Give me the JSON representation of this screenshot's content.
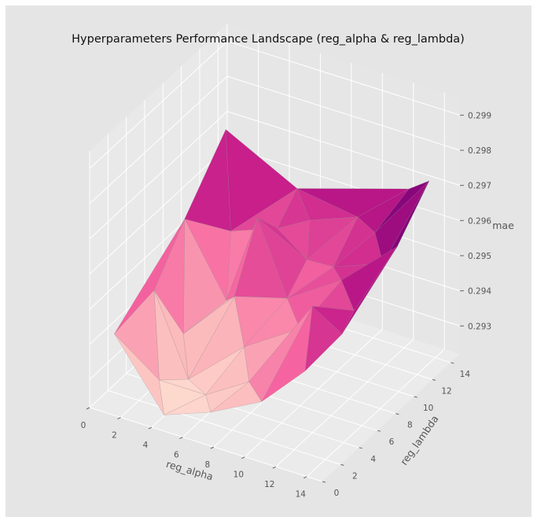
{
  "chart_data": {
    "type": "surface3d",
    "title": "Hyperparameters Performance Landscape (reg_alpha & reg_lambda)",
    "xlabel": "reg_alpha",
    "ylabel": "reg_lambda",
    "zlabel": "mae",
    "xlim": [
      0,
      15
    ],
    "ylim": [
      0,
      15
    ],
    "zlim": [
      0.2922,
      0.2995
    ],
    "x_ticks": [
      "0",
      "2",
      "4",
      "6",
      "8",
      "10",
      "12",
      "14"
    ],
    "y_ticks": [
      "0",
      "2",
      "4",
      "6",
      "8",
      "10",
      "12",
      "14"
    ],
    "z_ticks": [
      "0.293",
      "0.294",
      "0.295",
      "0.296",
      "0.297",
      "0.298",
      "0.299"
    ],
    "colormap": "RdPu",
    "background": "#e5e5e5",
    "grid": true,
    "points": [
      {
        "x": 0.5,
        "y": 14.0,
        "z": 0.2968
      },
      {
        "x": 0.8,
        "y": 9.0,
        "z": 0.2955
      },
      {
        "x": 1.2,
        "y": 5.0,
        "z": 0.2945
      },
      {
        "x": 1.0,
        "y": 1.0,
        "z": 0.2942
      },
      {
        "x": 2.0,
        "y": 12.0,
        "z": 0.2946
      },
      {
        "x": 2.5,
        "y": 6.0,
        "z": 0.2932
      },
      {
        "x": 3.0,
        "y": 2.5,
        "z": 0.2928
      },
      {
        "x": 3.2,
        "y": 9.5,
        "z": 0.2934
      },
      {
        "x": 4.0,
        "y": 4.0,
        "z": 0.2926
      },
      {
        "x": 4.5,
        "y": 0.5,
        "z": 0.2925
      },
      {
        "x": 4.8,
        "y": 14.5,
        "z": 0.2956
      },
      {
        "x": 5.0,
        "y": 12.0,
        "z": 0.2951
      },
      {
        "x": 5.2,
        "y": 7.0,
        "z": 0.2944
      },
      {
        "x": 5.5,
        "y": 9.0,
        "z": 0.2962
      },
      {
        "x": 6.0,
        "y": 2.5,
        "z": 0.2928
      },
      {
        "x": 6.5,
        "y": 13.0,
        "z": 0.2953
      },
      {
        "x": 7.0,
        "y": 5.0,
        "z": 0.2937
      },
      {
        "x": 7.5,
        "y": 11.0,
        "z": 0.2948
      },
      {
        "x": 7.5,
        "y": 0.5,
        "z": 0.293
      },
      {
        "x": 8.0,
        "y": 8.0,
        "z": 0.2945
      },
      {
        "x": 8.5,
        "y": 3.0,
        "z": 0.2934
      },
      {
        "x": 9.0,
        "y": 14.0,
        "z": 0.2955
      },
      {
        "x": 9.5,
        "y": 10.5,
        "z": 0.295
      },
      {
        "x": 10.0,
        "y": 6.0,
        "z": 0.2944
      },
      {
        "x": 10.5,
        "y": 1.0,
        "z": 0.2936
      },
      {
        "x": 11.0,
        "y": 12.5,
        "z": 0.2957
      },
      {
        "x": 11.5,
        "y": 8.0,
        "z": 0.2955
      },
      {
        "x": 12.0,
        "y": 4.0,
        "z": 0.2958
      },
      {
        "x": 12.0,
        "y": 14.5,
        "z": 0.2966
      },
      {
        "x": 13.0,
        "y": 10.0,
        "z": 0.2957
      },
      {
        "x": 13.5,
        "y": 6.0,
        "z": 0.2954
      },
      {
        "x": 13.0,
        "y": 1.5,
        "z": 0.2947
      },
      {
        "x": 14.2,
        "y": 13.0,
        "z": 0.2975
      },
      {
        "x": 14.5,
        "y": 3.0,
        "z": 0.2956
      },
      {
        "x": 14.8,
        "y": 8.5,
        "z": 0.2968
      }
    ]
  }
}
